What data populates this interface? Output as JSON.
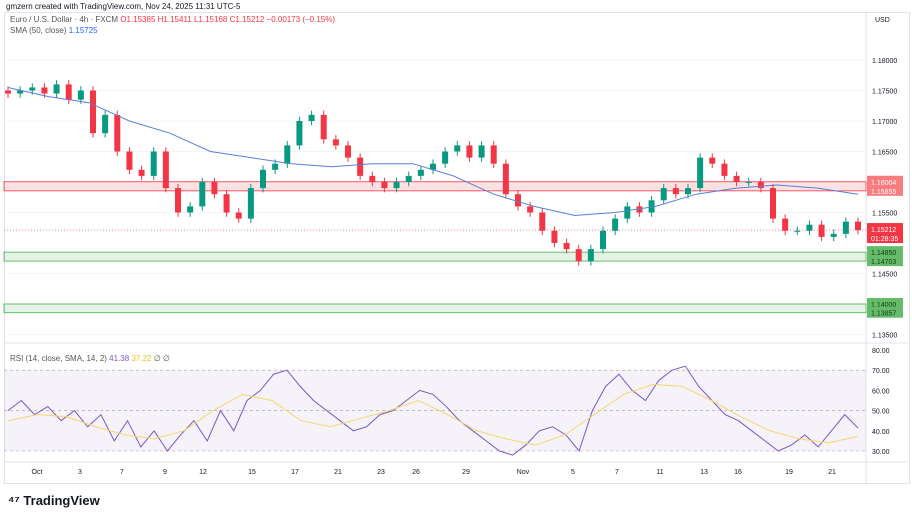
{
  "caption": "gmzern created with TradingView.com, Nov 24, 2025 11:31 UTC-5",
  "symbol": "Euro / U.S. Dollar · 4h · FXCM",
  "ohlc": {
    "o": "O1.15385",
    "h": "H1.15411",
    "l": "L1.15168",
    "c": "C1.15212",
    "chg": "−0.00173 (−0.15%)"
  },
  "sma": {
    "label": "SMA (50, close)",
    "value": "1.15725"
  },
  "rsi": {
    "label": "RSI (14, close, SMA, 14, 2)",
    "value": "41.38",
    "ma": "37.22",
    "extra": "∅ ∅"
  },
  "currency": "USD",
  "logo": "TradingView",
  "colors": {
    "up": "#089981",
    "down": "#f23645",
    "sma": "#5b7fdb",
    "rsi": "#7e57c2",
    "rsi_ma": "#f5d76e"
  },
  "chart_data": [
    {
      "type": "candlestick",
      "ylim": [
        1.1335,
        1.1825
      ],
      "yticks": [
        "1.18000",
        "1.17500",
        "1.17000",
        "1.16500",
        "1.15500",
        "1.14500",
        "1.13500"
      ],
      "xticks": [
        "Oct",
        "3",
        "7",
        "9",
        "12",
        "15",
        "17",
        "21",
        "23",
        "26",
        "29",
        "Nov",
        "5",
        "7",
        "11",
        "13",
        "16",
        "19",
        "21"
      ],
      "closes": [
        1.1745,
        1.175,
        1.1755,
        1.1745,
        1.176,
        1.1735,
        1.175,
        1.168,
        1.171,
        1.165,
        1.162,
        1.161,
        1.165,
        1.159,
        1.155,
        1.156,
        1.16,
        1.158,
        1.155,
        1.154,
        1.159,
        1.162,
        1.163,
        1.166,
        1.17,
        1.171,
        1.167,
        1.166,
        1.164,
        1.161,
        1.16,
        1.159,
        1.16,
        1.161,
        1.162,
        1.163,
        1.165,
        1.166,
        1.164,
        1.166,
        1.163,
        1.158,
        1.156,
        1.155,
        1.152,
        1.15,
        1.149,
        1.147,
        1.149,
        1.152,
        1.154,
        1.156,
        1.155,
        1.157,
        1.159,
        1.158,
        1.159,
        1.164,
        1.163,
        1.161,
        1.16,
        1.16,
        1.159,
        1.154,
        1.152,
        1.152,
        1.153,
        1.151,
        1.1515,
        1.1535,
        1.15212
      ],
      "sma": [
        1.1755,
        1.174,
        1.173,
        1.17,
        1.168,
        1.165,
        1.164,
        1.163,
        1.1625,
        1.163,
        1.163,
        1.161,
        1.158,
        1.156,
        1.1545,
        1.155,
        1.156,
        1.158,
        1.159,
        1.1595,
        1.159,
        1.158
      ],
      "zones": [
        {
          "top": "1.16004",
          "bottom": "1.15855",
          "kind": "resistance"
        },
        {
          "top": "1.14850",
          "bottom": "1.14703",
          "kind": "support"
        },
        {
          "top": "1.14000",
          "bottom": "1.13857",
          "kind": "support"
        }
      ],
      "last_price": "1.15212",
      "countdown": "01:28:35"
    },
    {
      "type": "line",
      "ylim": [
        25,
        82
      ],
      "yticks": [
        "80.00",
        "70.00",
        "60.00",
        "50.00",
        "40.00",
        "30.00"
      ],
      "rsi": [
        50,
        55,
        48,
        52,
        45,
        50,
        42,
        48,
        35,
        45,
        32,
        40,
        30,
        38,
        45,
        35,
        50,
        40,
        55,
        60,
        68,
        70,
        62,
        55,
        50,
        45,
        40,
        42,
        48,
        50,
        55,
        60,
        58,
        52,
        45,
        40,
        35,
        30,
        28,
        33,
        40,
        42,
        38,
        30,
        50,
        62,
        68,
        60,
        55,
        65,
        70,
        72,
        62,
        55,
        48,
        45,
        40,
        35,
        30,
        33,
        38,
        32,
        40,
        48,
        41.38
      ],
      "rsi_ma": [
        45,
        48,
        47,
        42,
        38,
        36,
        40,
        50,
        58,
        55,
        45,
        42,
        46,
        50,
        55,
        48,
        40,
        36,
        33,
        38,
        48,
        58,
        63,
        62,
        55,
        47,
        40,
        36,
        34,
        37.22
      ]
    }
  ]
}
